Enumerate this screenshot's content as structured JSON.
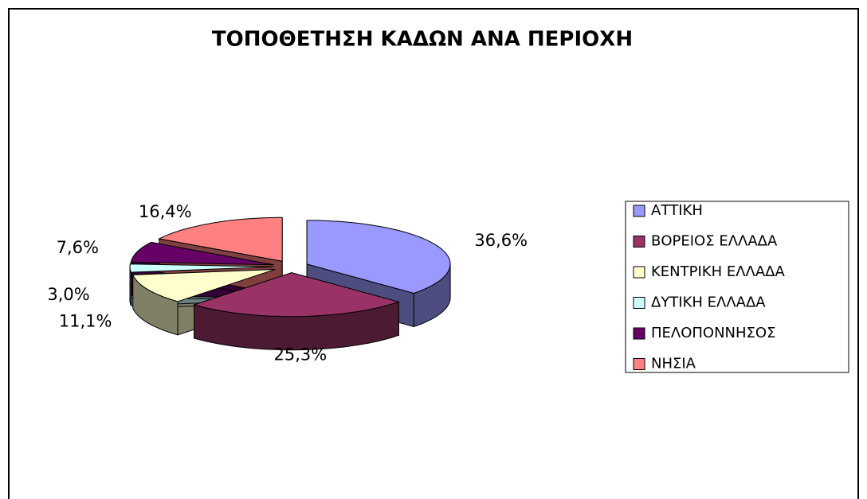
{
  "chart_data": {
    "type": "pie3d",
    "title": "ΤΟΠΟΘΕΤΗΣΗ ΚΑΔΩΝ ΑΝΑ ΠΕΡΙΟΧΗ",
    "categories": [
      "ΑΤΤΙΚΗ",
      "ΒΟΡΕΙΟΣ ΕΛΛΑΔΑ",
      "ΚΕΝΤΡΙΚΗ ΕΛΛΑΔΑ",
      "ΔΥΤΙΚΗ ΕΛΛΑΔΑ",
      "ΠΕΛΟΠΟΝΝΗΣΟΣ",
      "ΝΗΣΙΑ"
    ],
    "values": [
      36.6,
      25.3,
      11.1,
      3.0,
      7.6,
      16.4
    ],
    "value_labels": [
      "36,6%",
      "25,3%",
      "11,1%",
      "3,0%",
      "7,6%",
      "16,4%"
    ],
    "colors": [
      "#9999ff",
      "#993366",
      "#ffffcc",
      "#ccffff",
      "#660066",
      "#ff8080"
    ],
    "legend": "right"
  }
}
